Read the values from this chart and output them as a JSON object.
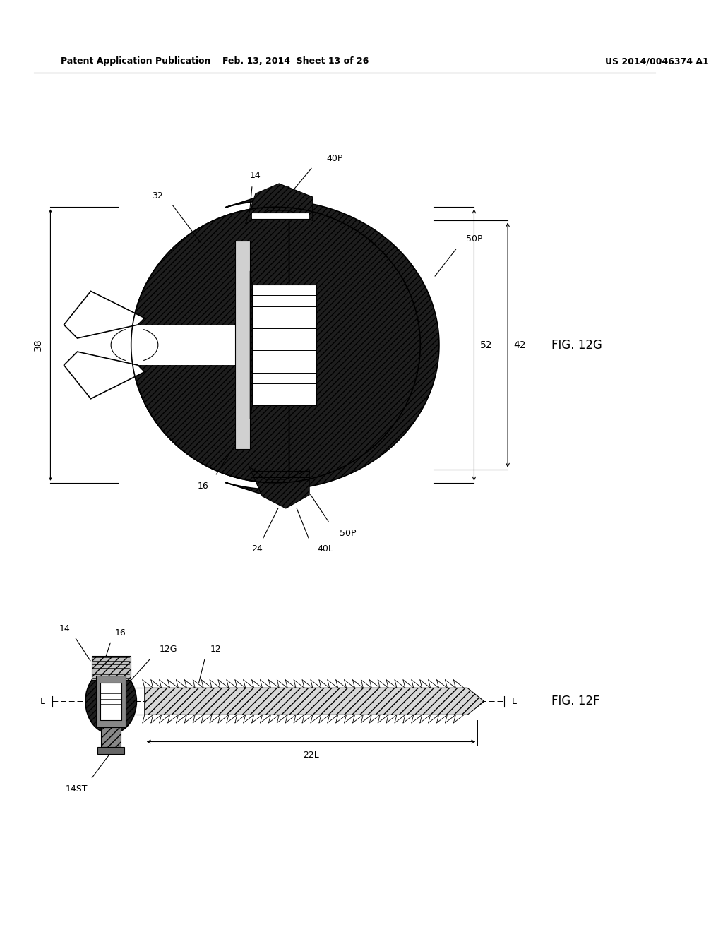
{
  "header_left": "Patent Application Publication",
  "header_mid": "Feb. 13, 2014  Sheet 13 of 26",
  "header_right": "US 2014/0046374 A1",
  "fig_top_label": "FIG. 12G",
  "fig_bot_label": "FIG. 12F",
  "bg_color": "#ffffff",
  "line_color": "#000000",
  "dark_fill": "#2a2a2a",
  "light_fill": "#e8e8e8",
  "mid_fill": "#888888"
}
